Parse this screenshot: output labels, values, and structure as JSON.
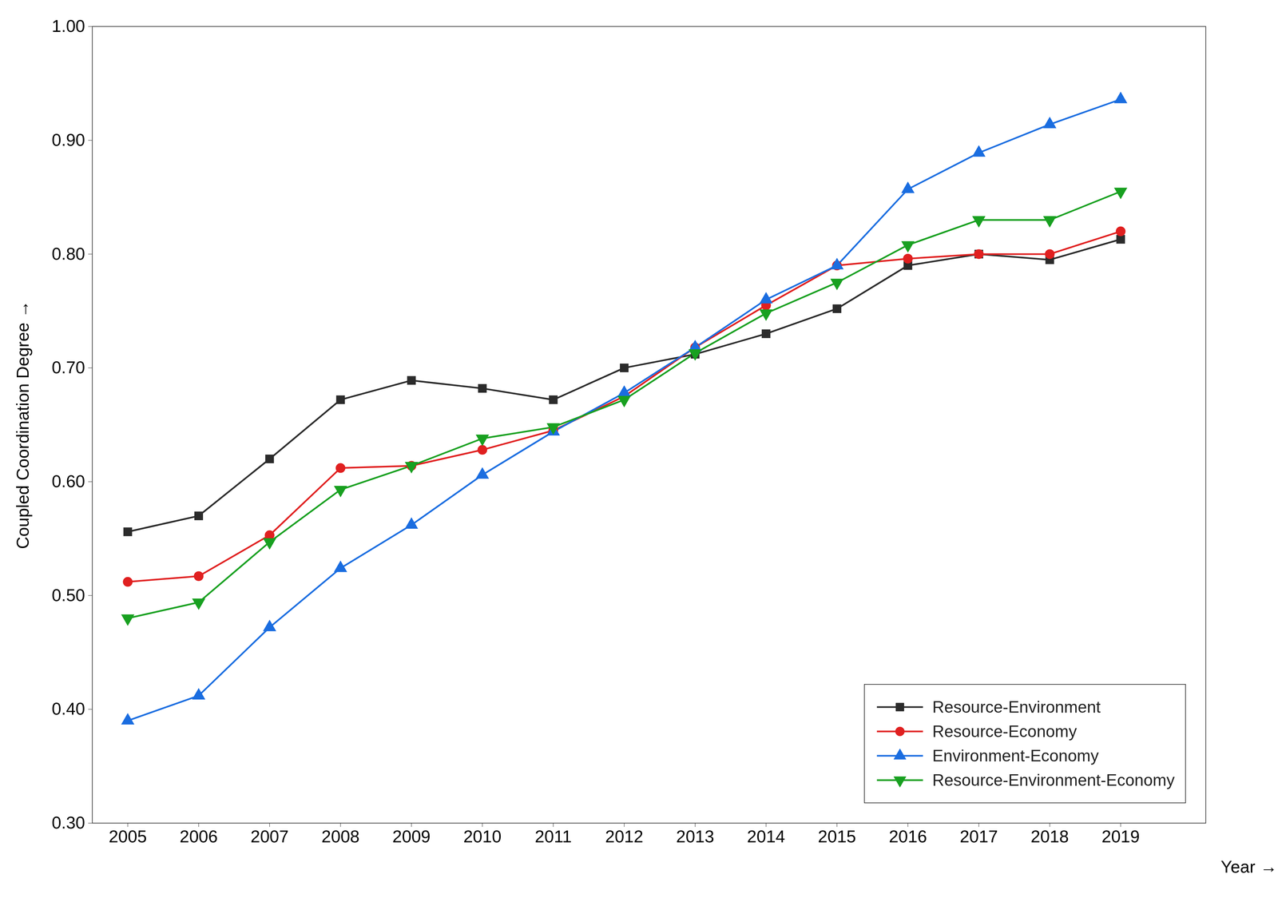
{
  "chart_data": {
    "type": "line",
    "x": [
      2005,
      2006,
      2007,
      2008,
      2009,
      2010,
      2011,
      2012,
      2013,
      2014,
      2015,
      2016,
      2017,
      2018,
      2019
    ],
    "series": [
      {
        "name": "Resource-Environment",
        "color": "#2b2b2b",
        "marker": "square",
        "values": [
          0.556,
          0.57,
          0.62,
          0.672,
          0.689,
          0.682,
          0.672,
          0.7,
          0.712,
          0.73,
          0.752,
          0.79,
          0.8,
          0.795,
          0.813
        ]
      },
      {
        "name": "Resource-Economy",
        "color": "#e02020",
        "marker": "circle",
        "values": [
          0.512,
          0.517,
          0.553,
          0.612,
          0.614,
          0.628,
          0.645,
          0.675,
          0.718,
          0.755,
          0.79,
          0.796,
          0.8,
          0.8,
          0.82
        ]
      },
      {
        "name": "Environment-Economy",
        "color": "#1a6de0",
        "marker": "triangle-up",
        "values": [
          0.39,
          0.412,
          0.472,
          0.524,
          0.562,
          0.606,
          0.644,
          0.678,
          0.718,
          0.76,
          0.79,
          0.857,
          0.889,
          0.914,
          0.936
        ]
      },
      {
        "name": "Resource-Environment-Economy",
        "color": "#18a020",
        "marker": "triangle-down",
        "values": [
          0.48,
          0.494,
          0.547,
          0.593,
          0.614,
          0.638,
          0.648,
          0.672,
          0.713,
          0.748,
          0.775,
          0.808,
          0.83,
          0.83,
          0.855
        ]
      }
    ],
    "xlabel": "Year",
    "ylabel": "Coupled Coordination Degree",
    "xlim": [
      2004.5,
      2020.2
    ],
    "xticks": [
      2005,
      2006,
      2007,
      2008,
      2009,
      2010,
      2011,
      2012,
      2013,
      2014,
      2015,
      2016,
      2017,
      2018,
      2019
    ],
    "ylim": [
      0.3,
      1.0
    ],
    "yticks": [
      {
        "value": 0.3,
        "label": "0.30"
      },
      {
        "value": 0.4,
        "label": "0.40"
      },
      {
        "value": 0.5,
        "label": "0.50"
      },
      {
        "value": 0.6,
        "label": "0.60"
      },
      {
        "value": 0.7,
        "label": "0.70"
      },
      {
        "value": 0.8,
        "label": "0.80"
      },
      {
        "value": 0.9,
        "label": "0.90"
      },
      {
        "value": 1.0,
        "label": "1.00"
      }
    ],
    "grid": false,
    "legend": "lower right"
  }
}
